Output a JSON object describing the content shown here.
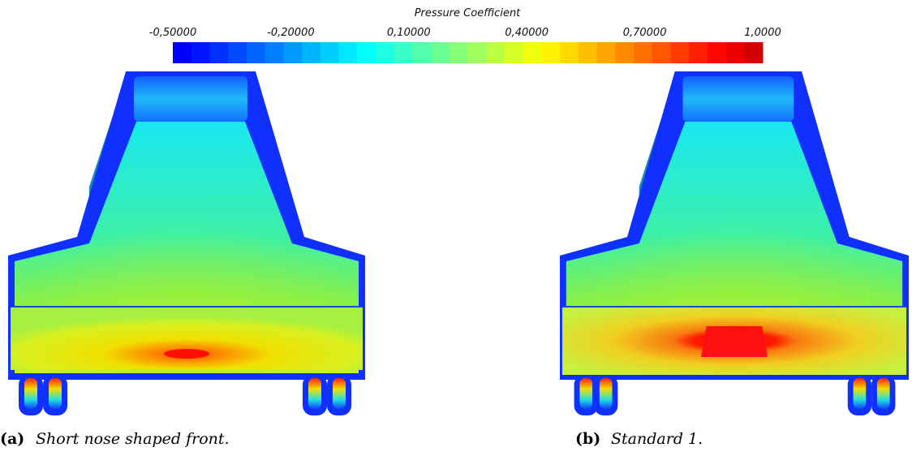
{
  "colorbar": {
    "title": "Pressure Coefficient",
    "ticks": [
      {
        "value": -0.5,
        "label": "-0,50000"
      },
      {
        "value": -0.2,
        "label": "-0,20000"
      },
      {
        "value": 0.1,
        "label": "0,10000"
      },
      {
        "value": 0.4,
        "label": "0,40000"
      },
      {
        "value": 0.7,
        "label": "0,70000"
      },
      {
        "value": 1.0,
        "label": "1,0000"
      }
    ]
  },
  "figures": [
    {
      "label": "(a)",
      "caption": "Short nose shaped front."
    },
    {
      "label": "(b)",
      "caption": "Standard 1."
    }
  ]
}
